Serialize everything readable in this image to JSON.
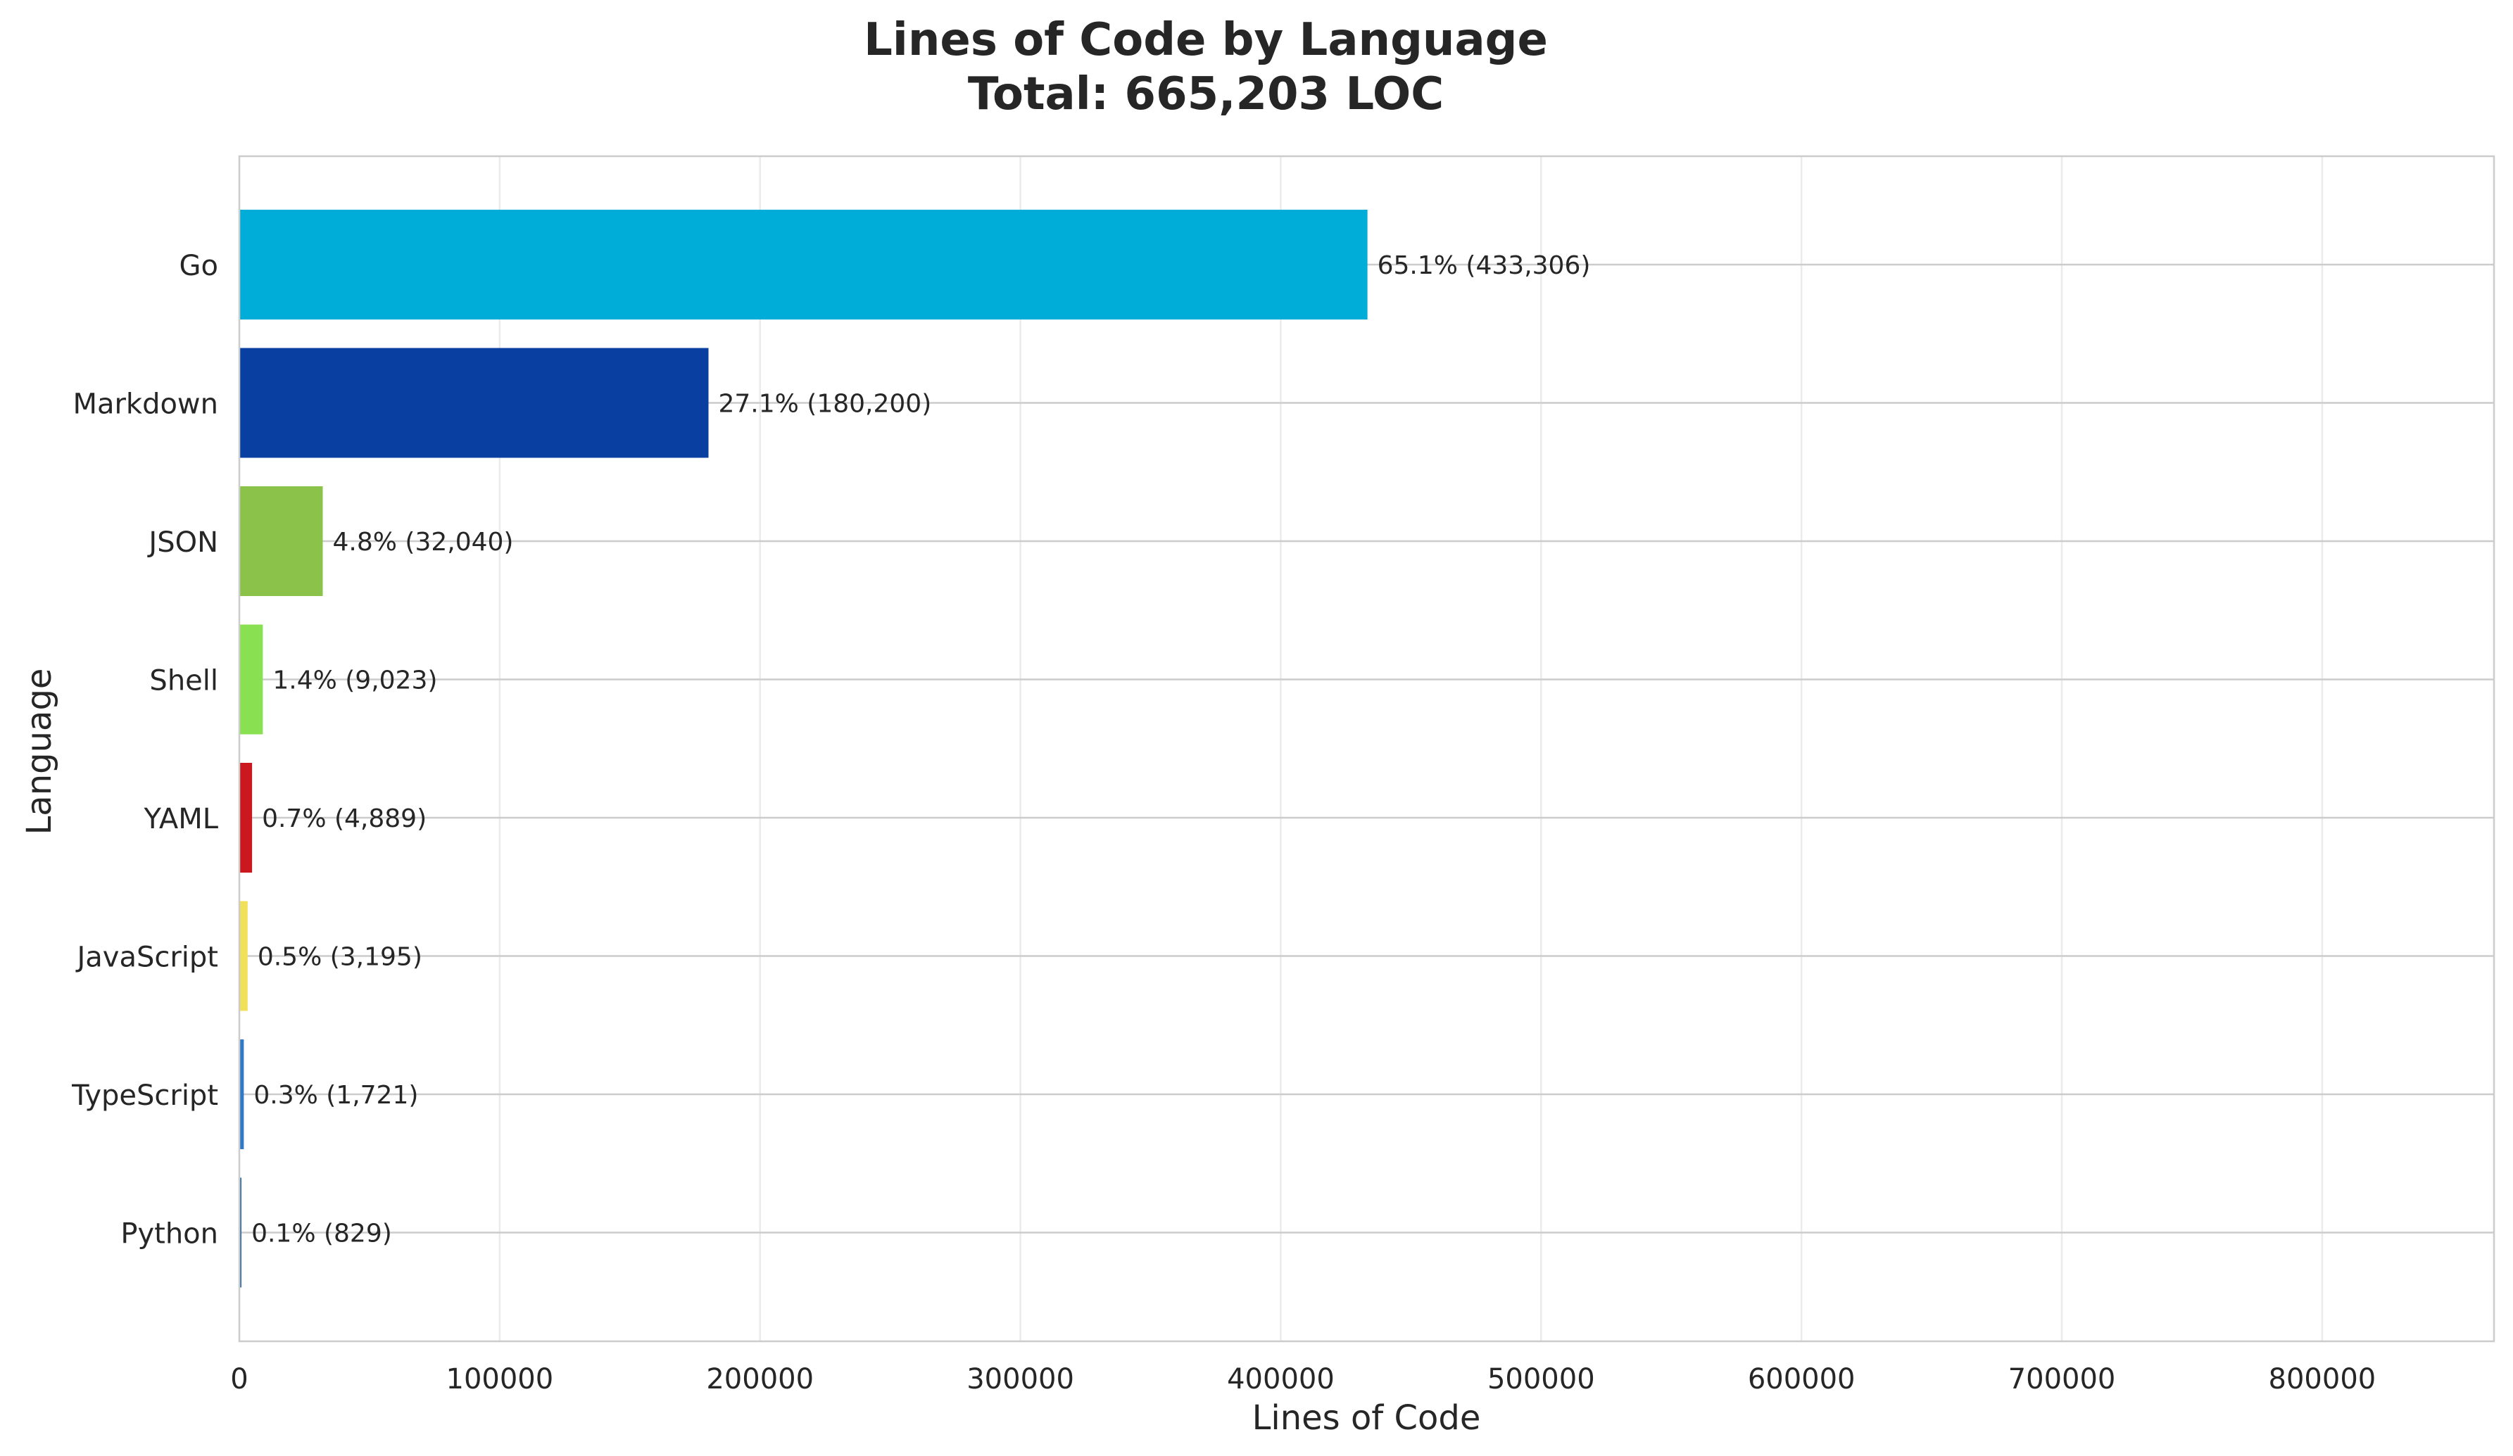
{
  "chart_data": {
    "type": "bar",
    "orientation": "horizontal",
    "title": "Lines of Code by Language",
    "subtitle": "Total: 665,203 LOC",
    "xlabel": "Lines of Code",
    "ylabel": "Language",
    "xlim": [
      0,
      866000
    ],
    "x_ticks": [
      0,
      100000,
      200000,
      300000,
      400000,
      500000,
      600000,
      700000,
      800000
    ],
    "x_tick_labels": [
      "0",
      "100000",
      "200000",
      "300000",
      "400000",
      "500000",
      "600000",
      "700000",
      "800000"
    ],
    "grid": true,
    "categories": [
      "Go",
      "Markdown",
      "JSON",
      "Shell",
      "YAML",
      "JavaScript",
      "TypeScript",
      "Python"
    ],
    "values": [
      433306,
      180200,
      32040,
      9023,
      4889,
      3195,
      1721,
      829
    ],
    "data_labels": [
      "65.1% (433,306)",
      "27.1% (180,200)",
      "4.8% (32,040)",
      "1.4% (9,023)",
      "0.7% (4,889)",
      "0.5% (3,195)",
      "0.3% (1,721)",
      "0.1% (829)"
    ],
    "colors": [
      "#00ADD8",
      "#083FA1",
      "#8BC34A",
      "#89E051",
      "#CB171E",
      "#F1E05A",
      "#3178C6",
      "#3572A5"
    ]
  }
}
